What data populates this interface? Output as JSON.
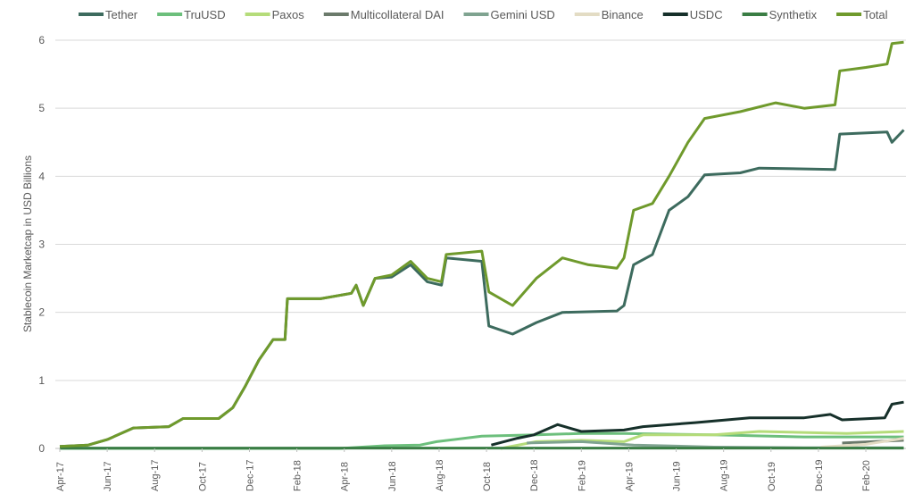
{
  "chart_data": {
    "type": "line",
    "title": "",
    "xlabel": "",
    "ylabel": "Stablecoin Marketcap in USD Billions",
    "ylim": [
      0,
      6
    ],
    "yticks": [
      0,
      1,
      2,
      3,
      4,
      5,
      6
    ],
    "x_unit": "months since Apr-17",
    "xlim": [
      0,
      35.6
    ],
    "xtick_labels": [
      "Apr-17",
      "Jun-17",
      "Aug-17",
      "Oct-17",
      "Dec-17",
      "Feb-18",
      "Apr-18",
      "Jun-18",
      "Aug-18",
      "Oct-18",
      "Dec-18",
      "Feb-19",
      "Apr-19",
      "Jun-19",
      "Aug-19",
      "Oct-19",
      "Dec-19",
      "Feb-20"
    ],
    "grid": true,
    "legend_position": "top",
    "series": [
      {
        "name": "Tether",
        "color": "#3d6b5e",
        "points": [
          [
            0,
            0.03
          ],
          [
            1.2,
            0.05
          ],
          [
            2,
            0.13
          ],
          [
            3.1,
            0.3
          ],
          [
            4.6,
            0.32
          ],
          [
            5.2,
            0.44
          ],
          [
            6.7,
            0.44
          ],
          [
            7.3,
            0.6
          ],
          [
            7.8,
            0.9
          ],
          [
            8.4,
            1.3
          ],
          [
            9,
            1.6
          ],
          [
            9.5,
            1.6
          ],
          [
            9.6,
            2.2
          ],
          [
            11,
            2.2
          ],
          [
            12.3,
            2.28
          ],
          [
            12.5,
            2.4
          ],
          [
            12.8,
            2.1
          ],
          [
            13.3,
            2.5
          ],
          [
            14,
            2.52
          ],
          [
            14.8,
            2.7
          ],
          [
            15.5,
            2.45
          ],
          [
            16.1,
            2.4
          ],
          [
            16.3,
            2.8
          ],
          [
            17.8,
            2.75
          ],
          [
            18.1,
            1.8
          ],
          [
            19.1,
            1.68
          ],
          [
            20.1,
            1.85
          ],
          [
            21.2,
            2.0
          ],
          [
            23.5,
            2.02
          ],
          [
            23.8,
            2.1
          ],
          [
            24.2,
            2.7
          ],
          [
            25,
            2.85
          ],
          [
            25.7,
            3.5
          ],
          [
            26.5,
            3.7
          ],
          [
            27.2,
            4.02
          ],
          [
            28.7,
            4.05
          ],
          [
            29.5,
            4.12
          ],
          [
            32.7,
            4.1
          ],
          [
            32.9,
            4.62
          ],
          [
            34.9,
            4.65
          ],
          [
            35.1,
            4.5
          ],
          [
            35.6,
            4.68
          ]
        ]
      },
      {
        "name": "TruUSD",
        "color": "#6cbf7c",
        "points": [
          [
            0,
            0
          ],
          [
            11.8,
            0
          ],
          [
            13.7,
            0.04
          ],
          [
            15.2,
            0.05
          ],
          [
            15.9,
            0.1
          ],
          [
            17.8,
            0.18
          ],
          [
            20.1,
            0.2
          ],
          [
            22,
            0.22
          ],
          [
            23.8,
            0.22
          ],
          [
            27.6,
            0.2
          ],
          [
            31.4,
            0.17
          ],
          [
            35.6,
            0.17
          ]
        ]
      },
      {
        "name": "Paxos",
        "color": "#b5dc7a",
        "points": [
          [
            18.6,
            0
          ],
          [
            20.1,
            0.1
          ],
          [
            22,
            0.12
          ],
          [
            23.8,
            0.1
          ],
          [
            24.6,
            0.2
          ],
          [
            27.6,
            0.2
          ],
          [
            29.5,
            0.25
          ],
          [
            33.2,
            0.22
          ],
          [
            35.6,
            0.25
          ]
        ]
      },
      {
        "name": "Multicollateral DAI",
        "color": "#6b7a6b",
        "points": [
          [
            33,
            0.08
          ],
          [
            35.6,
            0.12
          ]
        ]
      },
      {
        "name": "Gemini USD",
        "color": "#7fa390",
        "points": [
          [
            19.7,
            0.08
          ],
          [
            22,
            0.1
          ],
          [
            24.2,
            0.05
          ],
          [
            27.6,
            0.02
          ],
          [
            31.4,
            0.01
          ],
          [
            35.6,
            0.01
          ]
        ]
      },
      {
        "name": "Binance",
        "color": "#e3dcc4",
        "points": [
          [
            32.1,
            0.02
          ],
          [
            34,
            0.06
          ],
          [
            35.6,
            0.15
          ]
        ]
      },
      {
        "name": "USDC",
        "color": "#16302a",
        "points": [
          [
            18.2,
            0.05
          ],
          [
            19.3,
            0.15
          ],
          [
            20,
            0.2
          ],
          [
            21,
            0.35
          ],
          [
            22,
            0.25
          ],
          [
            23.8,
            0.27
          ],
          [
            24.6,
            0.32
          ],
          [
            26.8,
            0.38
          ],
          [
            29.1,
            0.45
          ],
          [
            31.4,
            0.45
          ],
          [
            32.5,
            0.5
          ],
          [
            33,
            0.42
          ],
          [
            34.8,
            0.45
          ],
          [
            35.1,
            0.65
          ],
          [
            35.6,
            0.68
          ]
        ]
      },
      {
        "name": "Synthetix",
        "color": "#3a7d44",
        "points": [
          [
            0,
            0.005
          ],
          [
            35.6,
            0.005
          ]
        ]
      },
      {
        "name": "Total",
        "color": "#6f9a2c",
        "points": [
          [
            0,
            0.03
          ],
          [
            1.2,
            0.05
          ],
          [
            2,
            0.13
          ],
          [
            3.1,
            0.3
          ],
          [
            4.6,
            0.32
          ],
          [
            5.2,
            0.44
          ],
          [
            6.7,
            0.44
          ],
          [
            7.3,
            0.6
          ],
          [
            7.8,
            0.9
          ],
          [
            8.4,
            1.3
          ],
          [
            9,
            1.6
          ],
          [
            9.5,
            1.6
          ],
          [
            9.6,
            2.2
          ],
          [
            11,
            2.2
          ],
          [
            12.3,
            2.28
          ],
          [
            12.5,
            2.4
          ],
          [
            12.8,
            2.1
          ],
          [
            13.3,
            2.5
          ],
          [
            14,
            2.55
          ],
          [
            14.8,
            2.75
          ],
          [
            15.5,
            2.5
          ],
          [
            16.1,
            2.45
          ],
          [
            16.3,
            2.85
          ],
          [
            17.8,
            2.9
          ],
          [
            18.1,
            2.3
          ],
          [
            19.1,
            2.1
          ],
          [
            20.1,
            2.5
          ],
          [
            21.2,
            2.8
          ],
          [
            22.3,
            2.7
          ],
          [
            23.5,
            2.65
          ],
          [
            23.8,
            2.8
          ],
          [
            24.2,
            3.5
          ],
          [
            25,
            3.6
          ],
          [
            25.7,
            4.0
          ],
          [
            26.5,
            4.5
          ],
          [
            27.2,
            4.85
          ],
          [
            28.7,
            4.95
          ],
          [
            30.2,
            5.08
          ],
          [
            31.4,
            5.0
          ],
          [
            32.7,
            5.05
          ],
          [
            32.9,
            5.55
          ],
          [
            34,
            5.6
          ],
          [
            34.9,
            5.65
          ],
          [
            35.1,
            5.95
          ],
          [
            35.6,
            5.97
          ]
        ]
      }
    ]
  }
}
